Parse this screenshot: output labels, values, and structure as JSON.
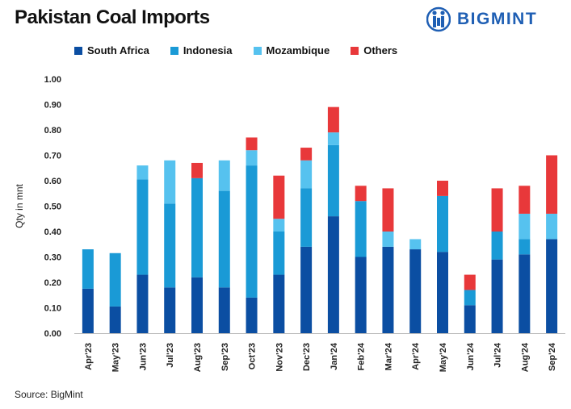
{
  "header": {
    "title": "Pakistan Coal Imports",
    "brand": "BIGMINT"
  },
  "footer": {
    "source": "Source: BigMint"
  },
  "colors": {
    "South Africa": "#0b4ea2",
    "Indonesia": "#1a9ad6",
    "Mozambique": "#56c2ef",
    "Others": "#e8383a"
  },
  "chart_data": {
    "type": "bar",
    "stacked": true,
    "title": "Pakistan Coal Imports",
    "ylabel": "Qty in mnt",
    "xlabel": "",
    "ylim": [
      0,
      1.0
    ],
    "yticks": [
      "0.00",
      "0.10",
      "0.20",
      "0.30",
      "0.40",
      "0.50",
      "0.60",
      "0.70",
      "0.80",
      "0.90",
      "1.00"
    ],
    "legend_position": "top",
    "grid": false,
    "categories": [
      "Apr'23",
      "May'23",
      "Jun'23",
      "Jul'23",
      "Aug'23",
      "Sep'23",
      "Oct'23",
      "Nov'23",
      "Dec'23",
      "Jan'24",
      "Feb'24",
      "Mar'24",
      "Apr'24",
      "May'24",
      "Jun'24",
      "Jul'24",
      "Aug'24",
      "Sep'24"
    ],
    "series": [
      {
        "name": "South Africa",
        "values": [
          0.175,
          0.105,
          0.23,
          0.18,
          0.22,
          0.18,
          0.14,
          0.23,
          0.34,
          0.46,
          0.3,
          0.34,
          0.33,
          0.32,
          0.11,
          0.29,
          0.31,
          0.37
        ]
      },
      {
        "name": "Indonesia",
        "values": [
          0.155,
          0.21,
          0.375,
          0.33,
          0.39,
          0.38,
          0.52,
          0.17,
          0.23,
          0.28,
          0.22,
          0.0,
          0.0,
          0.22,
          0.06,
          0.11,
          0.06,
          0.0
        ]
      },
      {
        "name": "Mozambique",
        "values": [
          0.0,
          0.0,
          0.055,
          0.17,
          0.0,
          0.12,
          0.06,
          0.05,
          0.11,
          0.05,
          0.0,
          0.06,
          0.04,
          0.0,
          0.0,
          0.0,
          0.1,
          0.1
        ]
      },
      {
        "name": "Others",
        "values": [
          0.0,
          0.0,
          0.0,
          0.0,
          0.06,
          0.0,
          0.05,
          0.17,
          0.05,
          0.1,
          0.06,
          0.17,
          0.0,
          0.06,
          0.06,
          0.17,
          0.11,
          0.23
        ]
      }
    ]
  }
}
